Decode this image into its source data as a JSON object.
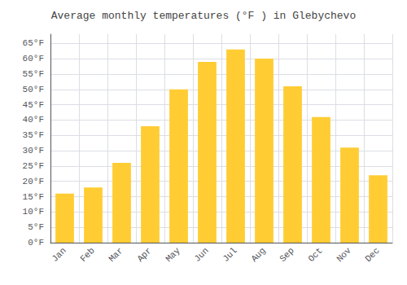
{
  "chart_data": {
    "type": "bar",
    "title": "Average monthly temperatures (°F ) in Glebychevo",
    "categories": [
      "Jan",
      "Feb",
      "Mar",
      "Apr",
      "May",
      "Jun",
      "Jul",
      "Aug",
      "Sep",
      "Oct",
      "Nov",
      "Dec"
    ],
    "values": [
      16,
      18,
      26,
      38,
      50,
      59,
      63,
      60,
      51,
      41,
      31,
      22
    ],
    "color": "#FFCC33",
    "ylim": [
      0,
      68
    ],
    "yticks": [
      {
        "value": 0,
        "label": "0°F"
      },
      {
        "value": 5,
        "label": "5°F"
      },
      {
        "value": 10,
        "label": "10°F"
      },
      {
        "value": 15,
        "label": "15°F"
      },
      {
        "value": 20,
        "label": "20°F"
      },
      {
        "value": 25,
        "label": "25°F"
      },
      {
        "value": 30,
        "label": "30°F"
      },
      {
        "value": 35,
        "label": "35°F"
      },
      {
        "value": 40,
        "label": "40°F"
      },
      {
        "value": 45,
        "label": "45°F"
      },
      {
        "value": 50,
        "label": "50°F"
      },
      {
        "value": 55,
        "label": "55°F"
      },
      {
        "value": 60,
        "label": "60°F"
      },
      {
        "value": 65,
        "label": "65°F"
      }
    ],
    "grid": true
  }
}
